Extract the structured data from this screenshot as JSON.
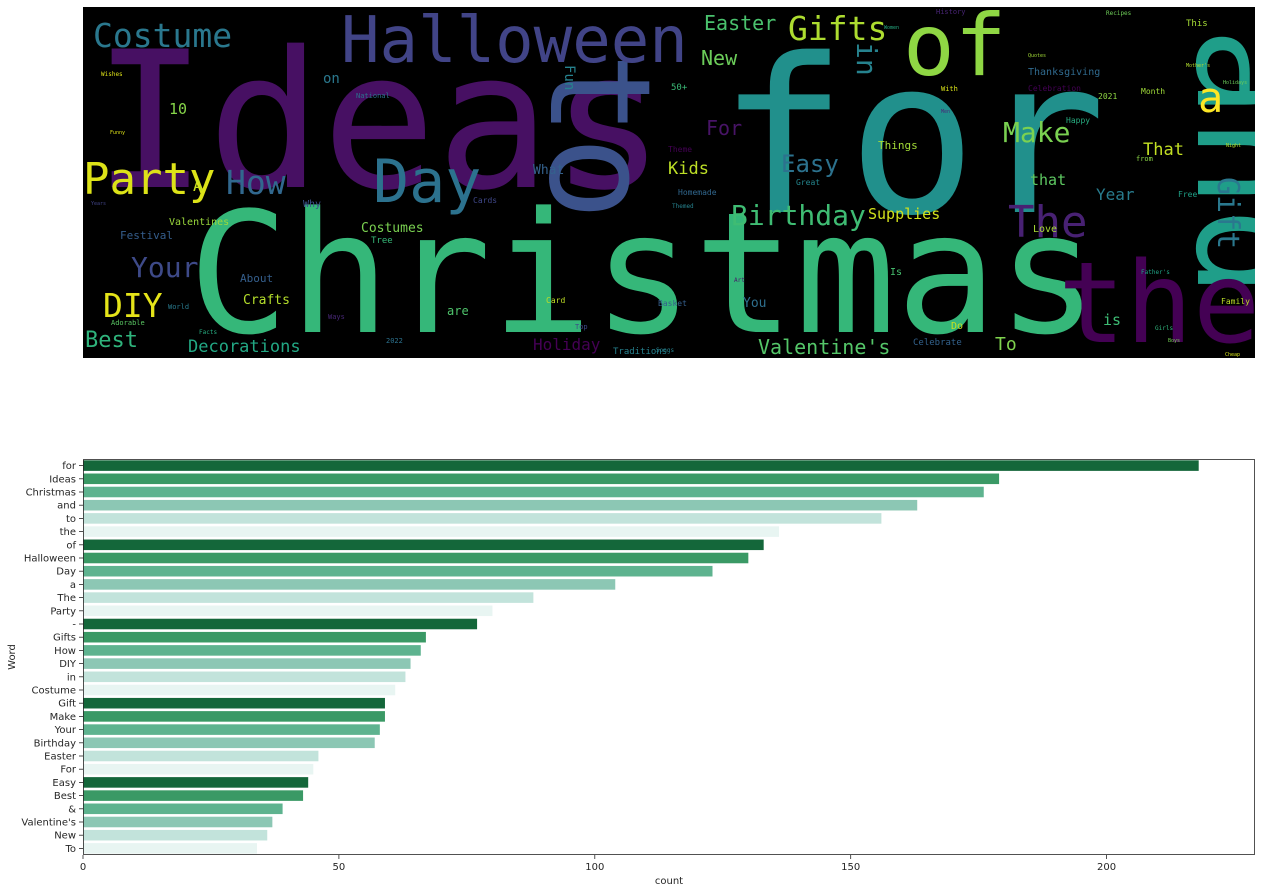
{
  "chart_data": [
    {
      "type": "wordcloud",
      "background": "#000000",
      "words": [
        {
          "text": "Ideas",
          "color": "#471063"
        },
        {
          "text": "for",
          "color": "#21908c"
        },
        {
          "text": "Christmas",
          "color": "#35b779"
        },
        {
          "text": "and",
          "color": "#1f9e89"
        },
        {
          "text": "to",
          "color": "#3b528b"
        },
        {
          "text": "the",
          "color": "#440154"
        },
        {
          "text": "of",
          "color": "#8fd744"
        },
        {
          "text": "Halloween",
          "color": "#414487"
        },
        {
          "text": "Day",
          "color": "#2c728e"
        },
        {
          "text": "a",
          "color": "#fde725"
        },
        {
          "text": "The",
          "color": "#482173"
        },
        {
          "text": "Party",
          "color": "#dde318"
        },
        {
          "text": "Costume",
          "color": "#2a788e"
        },
        {
          "text": "Gifts",
          "color": "#addc30"
        },
        {
          "text": "How",
          "color": "#31688e"
        },
        {
          "text": "DIY",
          "color": "#e5e419"
        },
        {
          "text": "in",
          "color": "#26828e"
        },
        {
          "text": "Gift",
          "color": "#2a788e"
        },
        {
          "text": "Make",
          "color": "#7ad151"
        },
        {
          "text": "Your",
          "color": "#3e4a89"
        },
        {
          "text": "Birthday",
          "color": "#3fbc73"
        },
        {
          "text": "Easter",
          "color": "#4ac16d"
        },
        {
          "text": "For",
          "color": "#481467"
        },
        {
          "text": "Easy",
          "color": "#2c728e"
        },
        {
          "text": "Best",
          "color": "#2fb47c"
        },
        {
          "text": "Valentine's",
          "color": "#54c568"
        },
        {
          "text": "New",
          "color": "#6ccd5a"
        },
        {
          "text": "To",
          "color": "#7fd34e"
        },
        {
          "text": "Decorations",
          "color": "#22a884"
        },
        {
          "text": "Holiday",
          "color": "#440154"
        },
        {
          "text": "Kids",
          "color": "#bddf26"
        },
        {
          "text": "That",
          "color": "#c2df23"
        },
        {
          "text": "Supplies",
          "color": "#d2e21b"
        },
        {
          "text": "Year",
          "color": "#287c8e"
        },
        {
          "text": "that",
          "color": "#5ec962"
        },
        {
          "text": "is",
          "color": "#3dbc74"
        },
        {
          "text": "Fun",
          "color": "#26828e"
        },
        {
          "text": "10",
          "color": "#86d549"
        },
        {
          "text": "A",
          "color": "#c8e020"
        },
        {
          "text": "Crafts",
          "color": "#b5de2b"
        },
        {
          "text": "Costumes",
          "color": "#7ad151"
        },
        {
          "text": "What",
          "color": "#34618d"
        },
        {
          "text": "on",
          "color": "#2a788e"
        },
        {
          "text": "About",
          "color": "#355f8d"
        },
        {
          "text": "Things",
          "color": "#a2da37"
        },
        {
          "text": "Festival",
          "color": "#355e8d"
        },
        {
          "text": "Valentines",
          "color": "#9bd93c"
        },
        {
          "text": "Thanksgiving",
          "color": "#306a8e"
        },
        {
          "text": "Love",
          "color": "#a8db34"
        },
        {
          "text": "You",
          "color": "#2e6f8e"
        },
        {
          "text": "Celebrate",
          "color": "#33628d"
        },
        {
          "text": "are",
          "color": "#4ec36b"
        },
        {
          "text": "Traditions",
          "color": "#26818e"
        },
        {
          "text": "Why",
          "color": "#3b528b"
        },
        {
          "text": "Tree",
          "color": "#37b878"
        },
        {
          "text": "Homemade",
          "color": "#31678e"
        },
        {
          "text": "Cards",
          "color": "#3f4788"
        },
        {
          "text": "Card",
          "color": "#c0df25"
        },
        {
          "text": "Basket",
          "color": "#355f8d"
        },
        {
          "text": "Great",
          "color": "#24868e"
        },
        {
          "text": "Free",
          "color": "#1fa187"
        },
        {
          "text": "Family",
          "color": "#bade28"
        },
        {
          "text": "Happy",
          "color": "#27ad81"
        },
        {
          "text": "Month",
          "color": "#a0da39"
        },
        {
          "text": "50+",
          "color": "#3aba76"
        },
        {
          "text": "2021",
          "color": "#90d743"
        },
        {
          "text": "2022",
          "color": "#2c728e"
        },
        {
          "text": "Theme",
          "color": "#440154"
        },
        {
          "text": "Is",
          "color": "#46c06f"
        },
        {
          "text": "Do",
          "color": "#c5e021"
        },
        {
          "text": "from",
          "color": "#8bd646"
        },
        {
          "text": "With",
          "color": "#dae319"
        },
        {
          "text": "Top",
          "color": "#3e4989"
        },
        {
          "text": "History",
          "color": "#482475"
        },
        {
          "text": "This",
          "color": "#a5db36"
        },
        {
          "text": "Recipes",
          "color": "#6ece58"
        },
        {
          "text": "World",
          "color": "#297a8e"
        },
        {
          "text": "Adorable",
          "color": "#5ac864"
        },
        {
          "text": "Facts",
          "color": "#27ad81"
        },
        {
          "text": "National",
          "color": "#2c738e"
        },
        {
          "text": "Art",
          "color": "#481a6c"
        },
        {
          "text": "Ways",
          "color": "#482878"
        },
        {
          "text": "Songs",
          "color": "#26818e"
        },
        {
          "text": "Holidays",
          "color": "#6ccd5a"
        },
        {
          "text": "Girls",
          "color": "#2fb47c"
        },
        {
          "text": "Father's",
          "color": "#20a486"
        },
        {
          "text": "Funny",
          "color": "#dde318"
        },
        {
          "text": "Celebration",
          "color": "#440154"
        },
        {
          "text": "Themed",
          "color": "#26828e"
        },
        {
          "text": "Night",
          "color": "#b8de29"
        },
        {
          "text": "Cheap",
          "color": "#d5e21a"
        },
        {
          "text": "Wishes",
          "color": "#dfe318"
        },
        {
          "text": "Quotes",
          "color": "#a2da37"
        },
        {
          "text": "Boys",
          "color": "#75d054"
        },
        {
          "text": "Women",
          "color": "#25ac82"
        },
        {
          "text": "Men",
          "color": "#482878"
        },
        {
          "text": "Mother's",
          "color": "#b2dd2d"
        },
        {
          "text": "Years",
          "color": "#414487"
        }
      ]
    },
    {
      "type": "bar",
      "orientation": "horizontal",
      "categories": [
        "for",
        "Ideas",
        "Christmas",
        "and",
        "to",
        "the",
        "of",
        "Halloween",
        "Day",
        "a",
        "The",
        "Party",
        "-",
        "Gifts",
        "How",
        "DIY",
        "in",
        "Costume",
        "Gift",
        "Make",
        "Your",
        "Birthday",
        "Easter",
        "For",
        "Easy",
        "Best",
        "&",
        "Valentine's",
        "New",
        "To"
      ],
      "values": [
        218,
        179,
        176,
        163,
        156,
        136,
        133,
        130,
        123,
        104,
        88,
        80,
        77,
        67,
        66,
        64,
        63,
        61,
        59,
        59,
        58,
        57,
        46,
        45,
        44,
        43,
        39,
        37,
        36,
        34
      ],
      "xlabel": "count",
      "ylabel": "Word",
      "xlim": [
        0,
        229
      ],
      "xticks": [
        0,
        50,
        100,
        150,
        200
      ],
      "palette": [
        "#14673a",
        "#3a9965",
        "#5eb38f",
        "#8cc7b4",
        "#c2e3db",
        "#e8f5f2"
      ],
      "grid": false,
      "legend": "none"
    }
  ]
}
